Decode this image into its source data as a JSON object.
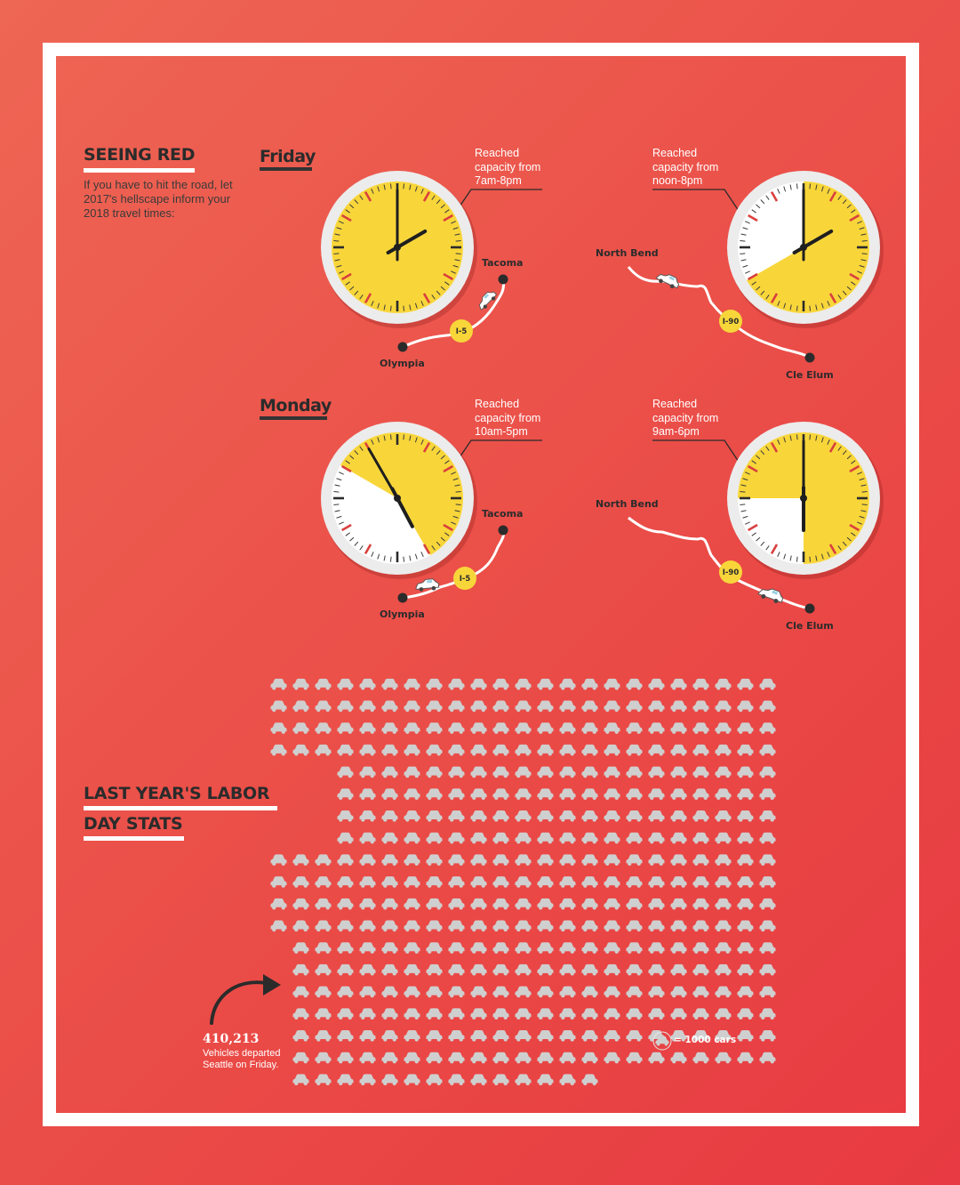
{
  "header": {
    "title": "SEEING RED",
    "intro": "If you have to hit the road, let 2017's hellscape inform your 2018 travel times:"
  },
  "days": [
    {
      "label": "Friday",
      "routes": [
        {
          "highway": "I-5",
          "from": "Olympia",
          "to": "Tacoma",
          "reached_lines": [
            "Reached",
            "capacity from",
            "7am-8pm"
          ],
          "capacity_start_hour": 7,
          "capacity_end_hour": 20
        },
        {
          "highway": "I-90",
          "from": "North Bend",
          "to": "Cle Elum",
          "reached_lines": [
            "Reached",
            "capacity from",
            "noon-8pm"
          ],
          "capacity_start_hour": 12,
          "capacity_end_hour": 20
        }
      ]
    },
    {
      "label": "Monday",
      "routes": [
        {
          "highway": "I-5",
          "from": "Olympia",
          "to": "Tacoma",
          "reached_lines": [
            "Reached",
            "capacity from",
            "10am-5pm"
          ],
          "capacity_start_hour": 10,
          "capacity_end_hour": 17
        },
        {
          "highway": "I-90",
          "from": "North Bend",
          "to": "Cle Elum",
          "reached_lines": [
            "Reached",
            "capacity from",
            "9am-6pm"
          ],
          "capacity_start_hour": 9,
          "capacity_end_hour": 18
        }
      ]
    }
  ],
  "stats": {
    "title_line1": "LAST YEAR'S LABOR",
    "title_line2": "DAY STATS",
    "total": "410,213",
    "total_note": "Vehicles departed Seattle on Friday.",
    "legend": "= 1000 cars",
    "icon_name": "car-icon",
    "cars_per_icon": 1000,
    "icon_count": 410.213
  },
  "colors": {
    "background": "#ea4a46",
    "frame": "#ffffff",
    "capacity_fill": "#f8d63a",
    "tick_red": "#d9403e",
    "car_icon": "#cfcfcf"
  }
}
